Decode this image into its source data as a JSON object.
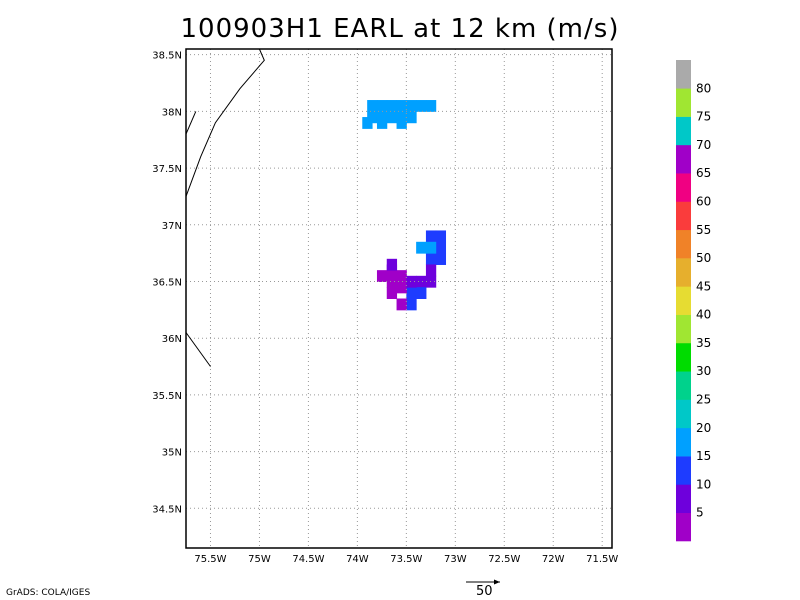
{
  "title": "100903H1 EARL at 12 km (m/s)",
  "credit": "GrADS: COLA/IGES",
  "reference_vector_label": "50",
  "lat_ticks": [
    "38.5N",
    "38N",
    "37.5N",
    "37N",
    "36.5N",
    "36N",
    "35.5N",
    "35N",
    "34.5N"
  ],
  "lon_ticks": [
    "75.5W",
    "75W",
    "74.5W",
    "74W",
    "73.5W",
    "73W",
    "72.5W",
    "72W",
    "71.5W"
  ],
  "colorbar": {
    "labels": [
      "5",
      "10",
      "15",
      "20",
      "25",
      "30",
      "35",
      "40",
      "45",
      "50",
      "55",
      "60",
      "65",
      "70",
      "75",
      "80"
    ],
    "colors": [
      "#a000c8",
      "#6e00dc",
      "#1e3cff",
      "#00a0ff",
      "#00c8c8",
      "#00d28c",
      "#00dc00",
      "#a0e632",
      "#e6dc32",
      "#e6af2d",
      "#f08228",
      "#fa3c3c",
      "#f00082",
      "#a000c8",
      "#00c8c8",
      "#a0e632",
      "#aaaaaa"
    ]
  },
  "chart_data": {
    "type": "heatmap",
    "title": "100903H1 EARL at 12 km (m/s)",
    "lon_range": [
      -75.75,
      -71.4
    ],
    "lat_range": [
      34.15,
      38.55
    ],
    "grid": true,
    "colorbar_placement": "right",
    "cells": [
      {
        "lon": -73.85,
        "lat": 38.05,
        "color": "#00a0ff"
      },
      {
        "lon": -73.75,
        "lat": 38.05,
        "color": "#00a0ff"
      },
      {
        "lon": -73.65,
        "lat": 38.05,
        "color": "#00a0ff"
      },
      {
        "lon": -73.55,
        "lat": 38.05,
        "color": "#00a0ff"
      },
      {
        "lon": -73.45,
        "lat": 38.05,
        "color": "#00a0ff"
      },
      {
        "lon": -73.25,
        "lat": 38.05,
        "color": "#00a0ff"
      },
      {
        "lon": -73.85,
        "lat": 37.95,
        "color": "#00a0ff"
      },
      {
        "lon": -73.75,
        "lat": 37.95,
        "color": "#00a0ff"
      },
      {
        "lon": -73.65,
        "lat": 37.95,
        "color": "#00a0ff"
      },
      {
        "lon": -73.55,
        "lat": 37.95,
        "color": "#00a0ff"
      },
      {
        "lon": -73.45,
        "lat": 37.95,
        "color": "#00a0ff"
      },
      {
        "lon": -73.35,
        "lat": 38.05,
        "color": "#00a0ff"
      },
      {
        "lon": -73.9,
        "lat": 37.9,
        "color": "#00a0ff"
      },
      {
        "lon": -73.75,
        "lat": 37.9,
        "color": "#00a0ff"
      },
      {
        "lon": -73.55,
        "lat": 37.9,
        "color": "#00a0ff"
      },
      {
        "lon": -73.25,
        "lat": 36.9,
        "color": "#1e3cff"
      },
      {
        "lon": -73.15,
        "lat": 36.9,
        "color": "#1e3cff"
      },
      {
        "lon": -73.15,
        "lat": 36.8,
        "color": "#1e3cff"
      },
      {
        "lon": -73.15,
        "lat": 36.7,
        "color": "#1e3cff"
      },
      {
        "lon": -73.25,
        "lat": 36.7,
        "color": "#1e3cff"
      },
      {
        "lon": -73.35,
        "lat": 36.8,
        "color": "#00a0ff"
      },
      {
        "lon": -73.25,
        "lat": 36.8,
        "color": "#00a0ff"
      },
      {
        "lon": -73.25,
        "lat": 36.6,
        "color": "#6e00dc"
      },
      {
        "lon": -73.25,
        "lat": 36.5,
        "color": "#6e00dc"
      },
      {
        "lon": -73.35,
        "lat": 36.5,
        "color": "#6e00dc"
      },
      {
        "lon": -73.45,
        "lat": 36.4,
        "color": "#1e3cff"
      },
      {
        "lon": -73.35,
        "lat": 36.4,
        "color": "#1e3cff"
      },
      {
        "lon": -73.45,
        "lat": 36.3,
        "color": "#1e3cff"
      },
      {
        "lon": -73.65,
        "lat": 36.6,
        "color": "#a000c8"
      },
      {
        "lon": -73.75,
        "lat": 36.55,
        "color": "#a000c8"
      },
      {
        "lon": -73.65,
        "lat": 36.5,
        "color": "#a000c8"
      },
      {
        "lon": -73.55,
        "lat": 36.55,
        "color": "#a000c8"
      },
      {
        "lon": -73.55,
        "lat": 36.45,
        "color": "#a000c8"
      },
      {
        "lon": -73.65,
        "lat": 36.4,
        "color": "#a000c8"
      },
      {
        "lon": -73.55,
        "lat": 36.3,
        "color": "#a000c8"
      },
      {
        "lon": -73.45,
        "lat": 36.5,
        "color": "#6e00dc"
      },
      {
        "lon": -73.65,
        "lat": 36.65,
        "color": "#6e00dc"
      }
    ],
    "coastlines": [
      [
        [
          -75.0,
          38.55
        ],
        [
          -74.95,
          38.45
        ],
        [
          -75.2,
          38.2
        ],
        [
          -75.45,
          37.9
        ],
        [
          -75.6,
          37.6
        ],
        [
          -75.75,
          37.25
        ]
      ],
      [
        [
          -75.65,
          38.0
        ],
        [
          -75.75,
          37.8
        ]
      ],
      [
        [
          -75.75,
          36.05
        ],
        [
          -75.5,
          35.75
        ]
      ]
    ]
  }
}
